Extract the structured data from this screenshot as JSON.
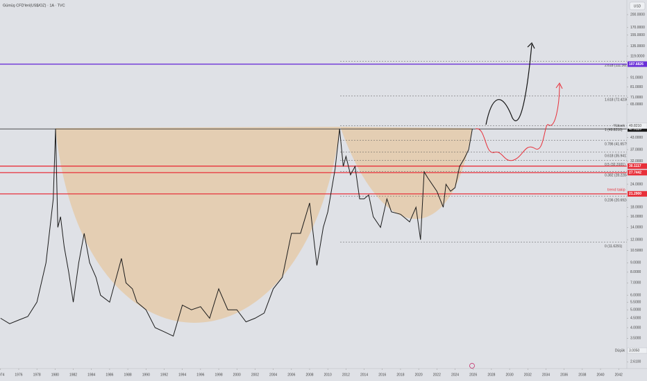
{
  "chart_data": {
    "type": "line",
    "title": "Gümüş CFD'leri(US$/OZ) · 1A · TVC",
    "currency": "USD",
    "log_scale": true,
    "color": "#1a1a1a",
    "x": [
      1974,
      1975,
      1976,
      1977,
      1978,
      1979,
      1979.8,
      1980.05,
      1980.3,
      1980.6,
      1981,
      1981.5,
      1982,
      1982.6,
      1983.2,
      1983.8,
      1984.5,
      1985,
      1986,
      1987.3,
      1987.8,
      1988.5,
      1989,
      1990,
      1991,
      1992,
      1993,
      1994,
      1995,
      1996,
      1997,
      1998,
      1999,
      2000,
      2001,
      2002,
      2003,
      2004,
      2005,
      2006,
      2007,
      2008,
      2008.8,
      2009.5,
      2010,
      2010.8,
      2011.3,
      2011.7,
      2012,
      2012.5,
      2013,
      2013.5,
      2014,
      2014.5,
      2015,
      2015.8,
      2016.5,
      2017,
      2018,
      2019,
      2019.7,
      2020.2,
      2020.6,
      2021,
      2022,
      2022.7,
      2023,
      2023.5,
      2024,
      2024.5,
      2025,
      2025.5,
      2025.9
    ],
    "values": [
      4.5,
      4.2,
      4.4,
      4.6,
      5.5,
      9,
      20,
      48,
      14,
      16,
      11,
      8,
      5.5,
      9,
      13,
      9,
      7.5,
      6,
      5.5,
      9.5,
      7,
      6.5,
      5.5,
      5,
      4,
      3.8,
      3.6,
      5.3,
      5,
      5.2,
      4.5,
      6.5,
      5,
      5,
      4.3,
      4.5,
      4.8,
      6.5,
      7.5,
      13,
      13,
      19,
      8.7,
      14,
      17,
      29,
      48,
      30,
      34,
      27,
      30,
      20,
      20,
      21,
      16,
      14,
      20,
      17,
      16.5,
      15,
      18,
      12,
      28,
      26,
      22,
      18,
      24,
      22,
      23,
      30,
      33,
      37,
      47.9
    ],
    "xlim": [
      1973.94,
      2042.9
    ],
    "ylim": [
      2.4,
      240
    ],
    "xticks": [
      1974,
      1976,
      1978,
      1980,
      1982,
      1984,
      1986,
      1988,
      1990,
      1992,
      1994,
      1996,
      1998,
      2000,
      2002,
      2004,
      2006,
      2008,
      2010,
      2012,
      2014,
      2016,
      2018,
      2020,
      2022,
      2024,
      2026,
      2028,
      2030,
      2032,
      2034,
      2036,
      2038,
      2040,
      2042
    ],
    "yticks": [
      {
        "value": 200,
        "label": "200.0000"
      },
      {
        "value": 170,
        "label": "170.0000"
      },
      {
        "value": 155,
        "label": "155.0000"
      },
      {
        "value": 135,
        "label": "135.0000"
      },
      {
        "value": 119,
        "label": "119.0000"
      },
      {
        "value": 91,
        "label": "91.0000"
      },
      {
        "value": 81,
        "label": "81.0000"
      },
      {
        "value": 71,
        "label": "71.0000"
      },
      {
        "value": 65,
        "label": "65.0000"
      },
      {
        "value": 43,
        "label": "43.0000"
      },
      {
        "value": 37,
        "label": "37.0000"
      },
      {
        "value": 32,
        "label": "32.0000"
      },
      {
        "value": 24,
        "label": "24.0000"
      },
      {
        "value": 18,
        "label": "18.0000"
      },
      {
        "value": 16,
        "label": "16.0000"
      },
      {
        "value": 14,
        "label": "14.0000"
      },
      {
        "value": 12,
        "label": "12.0000"
      },
      {
        "value": 10.5,
        "label": "10.5000"
      },
      {
        "value": 9,
        "label": "9.0000"
      },
      {
        "value": 8,
        "label": "8.0000"
      },
      {
        "value": 7,
        "label": "7.0000"
      },
      {
        "value": 6,
        "label": "6.0000"
      },
      {
        "value": 5.5,
        "label": "5.5000"
      },
      {
        "value": 5,
        "label": "5.0000"
      },
      {
        "value": 4.5,
        "label": "4.5000"
      },
      {
        "value": 4,
        "label": "4.0000"
      },
      {
        "value": 3.5,
        "label": "3.5000"
      },
      {
        "value": 2.61,
        "label": "2.6100"
      }
    ],
    "price_lines": [
      {
        "value": 107.6826,
        "label": "107.6826",
        "color": "#6a2fd8"
      },
      {
        "value": 47.912,
        "label": "47.9120",
        "color": "#1a1a1a"
      },
      {
        "value": 30.1117,
        "label": "30.1117",
        "color": "#e8303a"
      },
      {
        "value": 27.7442,
        "label": "27.7442",
        "color": "#e8303a"
      },
      {
        "value": 21.29,
        "label": "21.2900",
        "color": "#e8303a"
      }
    ],
    "fib_levels": [
      {
        "value": 111.3659,
        "label": "2.618 (111.3659)"
      },
      {
        "value": 72.4236,
        "label": "1.618 (72.4236)"
      },
      {
        "value": 49.821,
        "label": "1 (49.8210)"
      },
      {
        "value": 41.6579,
        "label": "0.786 (41.6579)"
      },
      {
        "value": 35.9417,
        "label": "0.618 (35.9417)"
      },
      {
        "value": 32.3101,
        "label": "0.5 (32.3101)"
      },
      {
        "value": 28.2284,
        "label": "0.382 (28.2284)"
      },
      {
        "value": 20.6924,
        "label": "0.236 (20.6924)"
      },
      {
        "value": 11.6291,
        "label": "0 (11.6291)"
      }
    ],
    "trend_note": {
      "value": 21.29,
      "label": "trend takip"
    },
    "high": {
      "value": 49.821,
      "name": "Yüksek",
      "label": "49.8210"
    },
    "low": {
      "value": 3.005,
      "name": "Düşük",
      "label": "3.0050"
    }
  }
}
